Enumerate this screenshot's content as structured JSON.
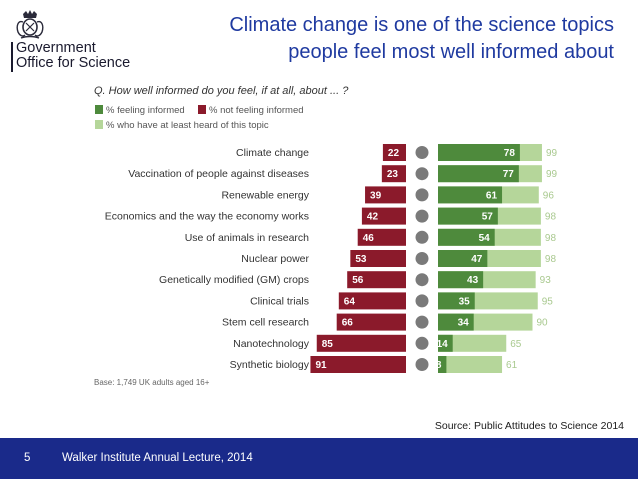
{
  "header": {
    "org_line1": "Government",
    "org_line2": "Office for Science",
    "title_line1": "Climate change is one of the science topics",
    "title_line2": "people feel most well informed about",
    "crest_icon": "royal-crest-icon"
  },
  "chart_data": {
    "type": "bar",
    "question": "Q. How well informed do you feel, if at all, about ... ?",
    "legend": {
      "informed": "% feeling informed",
      "not_informed": "% not feeling informed",
      "heard": "% who have at least heard of this topic"
    },
    "colors": {
      "informed": "#4e8a3c",
      "not_informed": "#8b1a2b",
      "heard": "#b5d69a",
      "icon": "#7a7a7a"
    },
    "categories": [
      "Climate change",
      "Vaccination of people against diseases",
      "Renewable energy",
      "Economics and the way the economy works",
      "Use of animals in research",
      "Nuclear power",
      "Genetically modified (GM) crops",
      "Clinical trials",
      "Stem cell research",
      "Nanotechnology",
      "Synthetic biology"
    ],
    "series": [
      {
        "name": "% not feeling informed",
        "values": [
          22,
          23,
          39,
          42,
          46,
          53,
          56,
          64,
          66,
          85,
          91
        ]
      },
      {
        "name": "% feeling informed",
        "values": [
          78,
          77,
          61,
          57,
          54,
          47,
          43,
          35,
          34,
          14,
          8
        ]
      },
      {
        "name": "% who have at least heard of this topic",
        "values": [
          99,
          99,
          96,
          98,
          98,
          98,
          93,
          95,
          90,
          65,
          61
        ]
      }
    ],
    "icons": [
      "cloud-co2-icon",
      "syringe-icon",
      "wind-turbine-icon",
      "economy-chart-icon",
      "animal-icon",
      "nuclear-plant-icon",
      "crop-icon",
      "clinical-icon",
      "microscope-icon",
      "nano-atom-icon",
      "dna-icon"
    ],
    "base": "Base: 1,749 UK adults aged 16+"
  },
  "source": "Source: Public Attitudes to Science 2014",
  "footer": {
    "page_number": "5",
    "text": "Walker Institute Annual Lecture, 2014"
  }
}
